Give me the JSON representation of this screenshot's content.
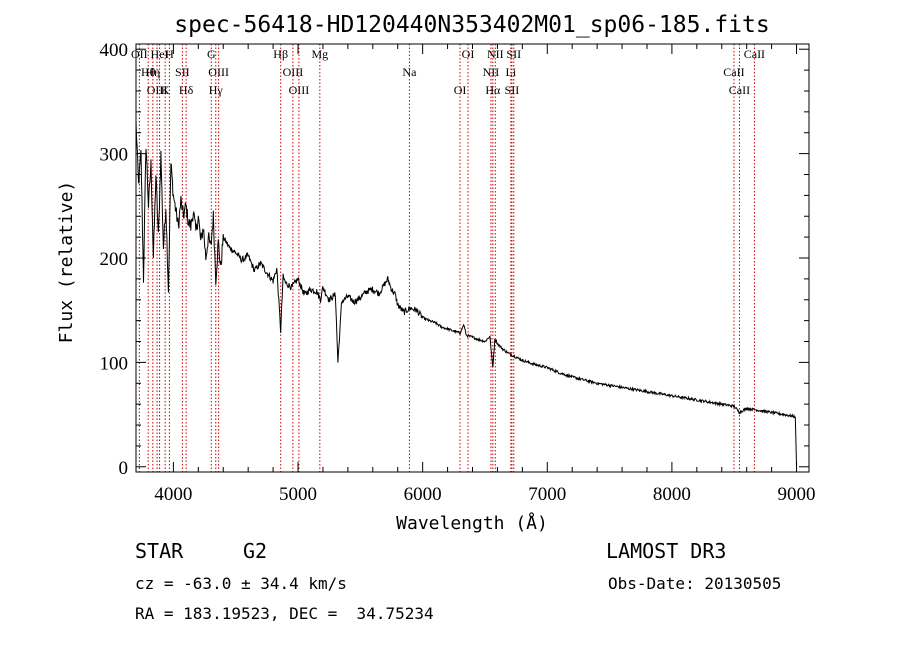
{
  "chart_data": {
    "type": "line",
    "title": "spec-56418-HD120440N353402M01_sp06-185.fits",
    "xlabel": "Wavelength (Å)",
    "ylabel": "Flux (relative)",
    "xlim": [
      3700,
      9100
    ],
    "ylim": [
      -5,
      405
    ],
    "xticks": [
      4000,
      5000,
      6000,
      7000,
      8000,
      9000
    ],
    "yticks": [
      0,
      100,
      200,
      300,
      400
    ],
    "series": [
      {
        "name": "spectrum",
        "x": [
          3700,
          3720,
          3740,
          3760,
          3780,
          3800,
          3820,
          3840,
          3860,
          3880,
          3900,
          3920,
          3940,
          3960,
          3980,
          4000,
          4020,
          4040,
          4060,
          4080,
          4100,
          4120,
          4140,
          4160,
          4180,
          4200,
          4220,
          4240,
          4260,
          4280,
          4300,
          4320,
          4340,
          4360,
          4380,
          4400,
          4450,
          4500,
          4550,
          4600,
          4650,
          4700,
          4750,
          4800,
          4830,
          4861,
          4880,
          4900,
          4950,
          5000,
          5050,
          5100,
          5150,
          5180,
          5200,
          5250,
          5300,
          5320,
          5350,
          5400,
          5450,
          5500,
          5550,
          5600,
          5650,
          5700,
          5720,
          5750,
          5780,
          5800,
          5850,
          5900,
          5950,
          6000,
          6050,
          6100,
          6150,
          6200,
          6250,
          6300,
          6330,
          6350,
          6400,
          6450,
          6500,
          6540,
          6563,
          6580,
          6600,
          6650,
          6700,
          6750,
          6800,
          6900,
          7000,
          7100,
          7200,
          7300,
          7400,
          7500,
          7600,
          7700,
          7800,
          7900,
          8000,
          8100,
          8200,
          8300,
          8400,
          8500,
          8542,
          8600,
          8700,
          8800,
          8900,
          8990,
          9000
        ],
        "y": [
          330,
          270,
          300,
          180,
          310,
          250,
          290,
          200,
          280,
          220,
          300,
          210,
          250,
          170,
          290,
          260,
          245,
          230,
          255,
          240,
          250,
          235,
          230,
          245,
          225,
          240,
          215,
          230,
          200,
          220,
          210,
          240,
          180,
          215,
          190,
          220,
          210,
          205,
          198,
          202,
          188,
          195,
          186,
          178,
          190,
          130,
          182,
          176,
          172,
          180,
          165,
          170,
          168,
          160,
          172,
          160,
          165,
          100,
          158,
          163,
          158,
          162,
          168,
          170,
          166,
          176,
          180,
          170,
          165,
          155,
          148,
          152,
          150,
          143,
          140,
          138,
          134,
          132,
          130,
          128,
          136,
          126,
          124,
          122,
          120,
          125,
          95,
          123,
          118,
          112,
          108,
          105,
          102,
          98,
          95,
          90,
          86,
          83,
          80,
          78,
          76,
          74,
          72,
          70,
          68,
          66,
          64,
          62,
          60,
          58,
          52,
          56,
          54,
          52,
          50,
          48,
          0
        ]
      }
    ],
    "spectral_lines": [
      {
        "label": "OII",
        "wavelength": 3727
      },
      {
        "label": "Hθ",
        "wavelength": 3798
      },
      {
        "label": "OIII",
        "wavelength": 3869
      },
      {
        "label": "HeI",
        "wavelength": 3889
      },
      {
        "label": "Hη",
        "wavelength": 3835
      },
      {
        "label": "K",
        "wavelength": 3934
      },
      {
        "label": "H",
        "wavelength": 3968
      },
      {
        "label": "SII",
        "wavelength": 4072
      },
      {
        "label": "Hδ",
        "wavelength": 4102
      },
      {
        "label": "G",
        "wavelength": 4304
      },
      {
        "label": "OIII",
        "wavelength": 4363
      },
      {
        "label": "Hγ",
        "wavelength": 4340
      },
      {
        "label": "Hβ",
        "wavelength": 4861
      },
      {
        "label": "OIII",
        "wavelength": 4959
      },
      {
        "label": "OIII",
        "wavelength": 5007
      },
      {
        "label": "Mg",
        "wavelength": 5175
      },
      {
        "label": "Na",
        "wavelength": 5894
      },
      {
        "label": "OI",
        "wavelength": 6300
      },
      {
        "label": "OI",
        "wavelength": 6364
      },
      {
        "label": "NII",
        "wavelength": 6548
      },
      {
        "label": "Hα",
        "wavelength": 6563
      },
      {
        "label": "NII",
        "wavelength": 6583
      },
      {
        "label": "Li",
        "wavelength": 6708
      },
      {
        "label": "SII",
        "wavelength": 6716
      },
      {
        "label": "SII",
        "wavelength": 6731
      },
      {
        "label": "CaII",
        "wavelength": 8498
      },
      {
        "label": "CaII",
        "wavelength": 8542
      },
      {
        "label": "CaII",
        "wavelength": 8662
      }
    ]
  },
  "info": {
    "object_class": "STAR",
    "subclass": "G2",
    "survey": "LAMOST DR3",
    "redshift": "cz = -63.0 ± 34.4 km/s",
    "obs_date": "Obs-Date: 20130505",
    "coords": "RA = 183.19523, DEC =  34.75234"
  },
  "colors": {
    "line": "#000000",
    "spectral_marker": "#cc0000"
  }
}
